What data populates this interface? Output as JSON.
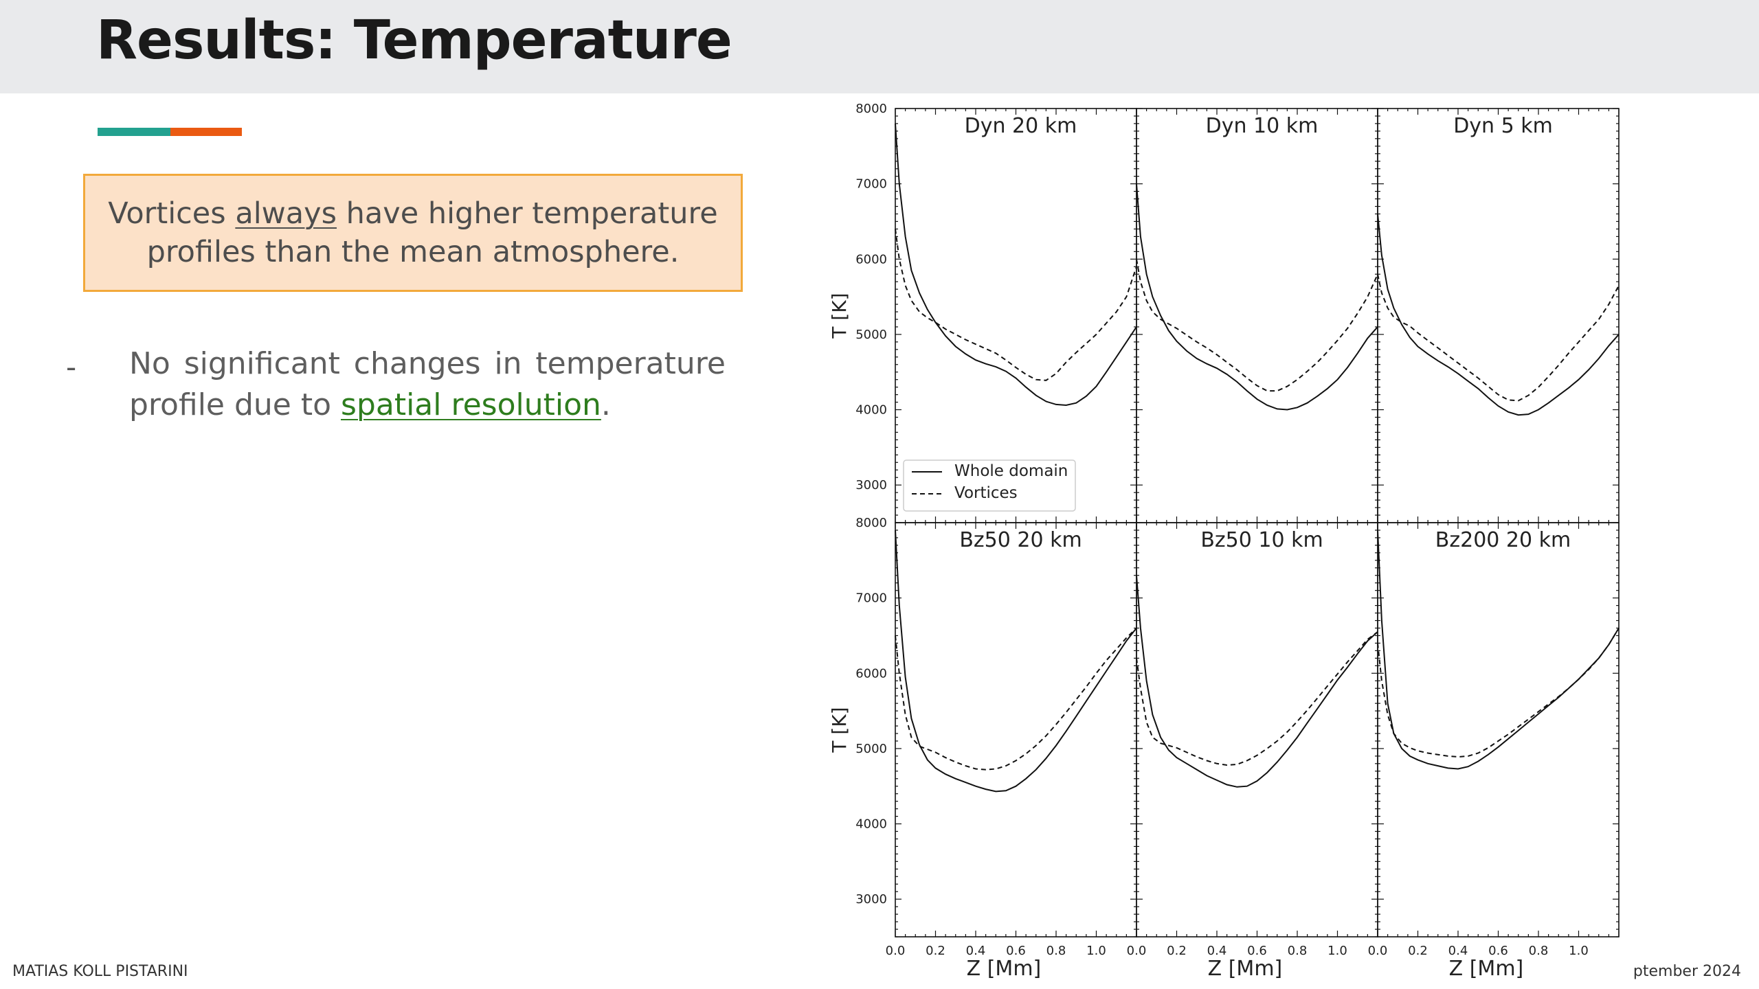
{
  "slide": {
    "title": "Results: Temperature",
    "accent_colors": [
      "#23a18f",
      "#ea5a12"
    ],
    "callout": {
      "line1_before": "Vortices ",
      "line1_underlined": "always",
      "line1_after": " have higher temperature",
      "line2": "profiles than the mean atmosphere."
    },
    "bullet": {
      "marker": "-",
      "text_before": "No significant changes in temperature profile due to ",
      "link_text": "spatial resolution",
      "text_after": "."
    },
    "footer_left": "MATIAS KOLL PISTARINI",
    "footer_right": "ptember  2024"
  },
  "chart_data": {
    "type": "line",
    "layout": "2x3 small multiples, shared axes",
    "xlabel": "Z [Mm]",
    "ylabel": "T [K]",
    "xlim": [
      0.0,
      1.2
    ],
    "ylim": [
      2500,
      8000
    ],
    "xticks": [
      "0.0",
      "0.2",
      "0.4",
      "0.6",
      "0.8",
      "1.0"
    ],
    "yticks": [
      "3000",
      "4000",
      "5000",
      "6000",
      "7000",
      "8000"
    ],
    "legend": {
      "placement": "lower-left of first panel",
      "entries": [
        {
          "label": "Whole domain",
          "style": "solid"
        },
        {
          "label": "Vortices",
          "style": "dashed"
        }
      ]
    },
    "x": [
      0.0,
      0.02,
      0.05,
      0.08,
      0.12,
      0.16,
      0.2,
      0.25,
      0.3,
      0.35,
      0.4,
      0.45,
      0.5,
      0.55,
      0.6,
      0.65,
      0.7,
      0.75,
      0.8,
      0.85,
      0.9,
      0.95,
      1.0,
      1.05,
      1.1,
      1.15,
      1.2
    ],
    "panels": [
      {
        "title": "Dyn 20 km",
        "series": [
          {
            "name": "Whole domain",
            "style": "solid",
            "values": [
              7800,
              7000,
              6300,
              5850,
              5550,
              5330,
              5160,
              4980,
              4840,
              4740,
              4660,
              4610,
              4570,
              4510,
              4420,
              4300,
              4190,
              4110,
              4070,
              4060,
              4090,
              4180,
              4310,
              4500,
              4700,
              4900,
              5100
            ]
          },
          {
            "name": "Vortices",
            "style": "dashed",
            "values": [
              6400,
              6000,
              5650,
              5450,
              5300,
              5220,
              5160,
              5070,
              5000,
              4930,
              4870,
              4810,
              4750,
              4660,
              4560,
              4470,
              4400,
              4390,
              4480,
              4630,
              4760,
              4880,
              5000,
              5150,
              5300,
              5500,
              5900
            ]
          }
        ]
      },
      {
        "title": "Dyn 10 km",
        "series": [
          {
            "name": "Whole domain",
            "style": "solid",
            "values": [
              7000,
              6300,
              5800,
              5500,
              5250,
              5050,
              4910,
              4780,
              4680,
              4610,
              4550,
              4470,
              4370,
              4250,
              4140,
              4060,
              4010,
              4000,
              4030,
              4090,
              4180,
              4280,
              4400,
              4560,
              4750,
              4950,
              5100
            ]
          },
          {
            "name": "Vortices",
            "style": "dashed",
            "values": [
              6000,
              5700,
              5450,
              5300,
              5200,
              5140,
              5080,
              4990,
              4900,
              4820,
              4730,
              4630,
              4530,
              4420,
              4320,
              4250,
              4250,
              4310,
              4400,
              4510,
              4630,
              4770,
              4920,
              5080,
              5280,
              5500,
              5800
            ]
          }
        ]
      },
      {
        "title": "Dyn 5 km",
        "series": [
          {
            "name": "Whole domain",
            "style": "solid",
            "values": [
              6600,
              6050,
              5600,
              5350,
              5130,
              4960,
              4840,
              4740,
              4650,
              4570,
              4480,
              4380,
              4280,
              4160,
              4050,
              3970,
              3930,
              3940,
              4000,
              4090,
              4190,
              4290,
              4400,
              4530,
              4680,
              4850,
              5000
            ]
          },
          {
            "name": "Vortices",
            "style": "dashed",
            "values": [
              5800,
              5550,
              5350,
              5230,
              5160,
              5110,
              5020,
              4920,
              4820,
              4720,
              4620,
              4520,
              4420,
              4310,
              4200,
              4130,
              4120,
              4190,
              4300,
              4440,
              4590,
              4750,
              4900,
              5050,
              5200,
              5400,
              5650
            ]
          }
        ]
      },
      {
        "title": "Bz50 20 km",
        "series": [
          {
            "name": "Whole domain",
            "style": "solid",
            "values": [
              7900,
              6900,
              5950,
              5400,
              5050,
              4850,
              4740,
              4660,
              4600,
              4550,
              4500,
              4460,
              4430,
              4440,
              4500,
              4600,
              4720,
              4870,
              5040,
              5230,
              5430,
              5630,
              5830,
              6030,
              6230,
              6430,
              6600
            ]
          },
          {
            "name": "Vortices",
            "style": "dashed",
            "values": [
              6500,
              6000,
              5450,
              5150,
              5030,
              4990,
              4950,
              4880,
              4820,
              4770,
              4730,
              4720,
              4730,
              4770,
              4840,
              4930,
              5040,
              5170,
              5320,
              5480,
              5650,
              5820,
              6000,
              6170,
              6320,
              6470,
              6600
            ]
          }
        ]
      },
      {
        "title": "Bz50 10 km",
        "series": [
          {
            "name": "Whole domain",
            "style": "solid",
            "values": [
              7300,
              6600,
              5900,
              5450,
              5150,
              4980,
              4880,
              4800,
              4720,
              4640,
              4580,
              4520,
              4490,
              4500,
              4570,
              4680,
              4820,
              4980,
              5150,
              5340,
              5530,
              5720,
              5910,
              6080,
              6260,
              6430,
              6550
            ]
          },
          {
            "name": "Vortices",
            "style": "dashed",
            "values": [
              6200,
              5800,
              5350,
              5150,
              5070,
              5040,
              5010,
              4950,
              4890,
              4840,
              4800,
              4780,
              4790,
              4840,
              4910,
              5000,
              5100,
              5220,
              5360,
              5510,
              5670,
              5830,
              5990,
              6150,
              6300,
              6450,
              6550
            ]
          }
        ]
      },
      {
        "title": "Bz200 20 km",
        "series": [
          {
            "name": "Whole domain",
            "style": "solid",
            "values": [
              7900,
              6700,
              5600,
              5200,
              5000,
              4900,
              4850,
              4800,
              4770,
              4740,
              4730,
              4760,
              4830,
              4920,
              5020,
              5130,
              5240,
              5350,
              5460,
              5570,
              5680,
              5800,
              5920,
              6060,
              6200,
              6380,
              6600
            ]
          },
          {
            "name": "Vortices",
            "style": "dashed",
            "values": [
              6400,
              5900,
              5450,
              5200,
              5070,
              5010,
              4970,
              4940,
              4920,
              4900,
              4890,
              4900,
              4940,
              5010,
              5100,
              5190,
              5290,
              5390,
              5490,
              5590,
              5690,
              5800,
              5920,
              6050,
              6200,
              6380,
              6600
            ]
          }
        ]
      }
    ]
  }
}
